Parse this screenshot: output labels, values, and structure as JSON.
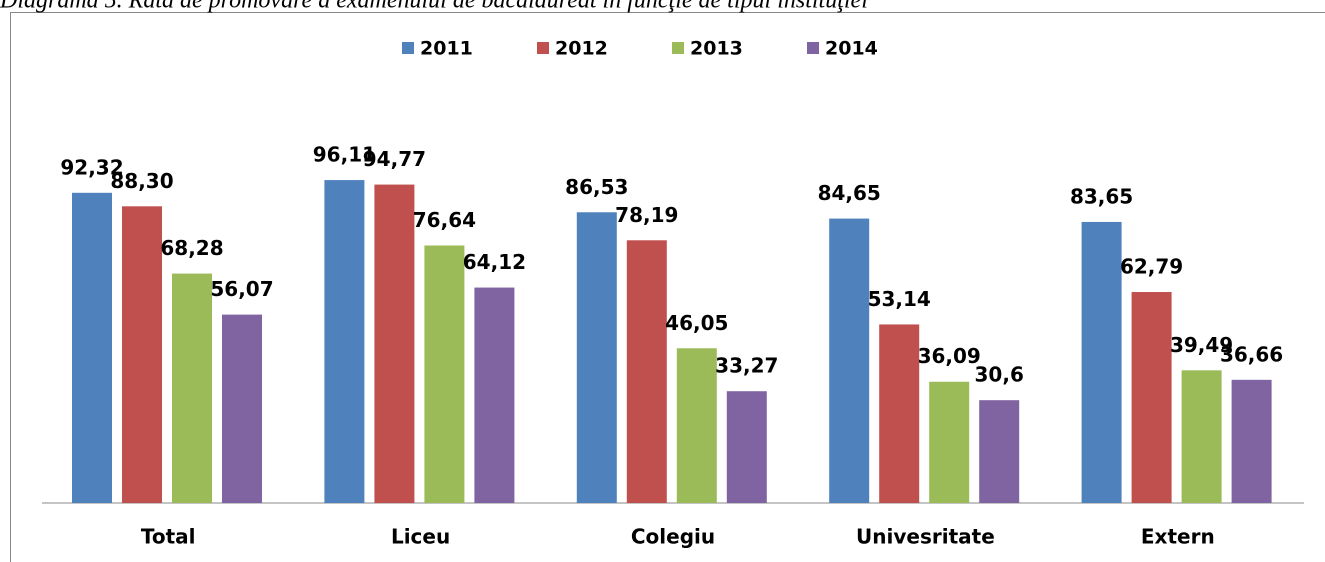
{
  "chart_data": {
    "type": "bar",
    "title": "Diagrama 5. Rata de promovare a examenului de bacalaureat în funcţie de tipul instituţiei",
    "categories": [
      "Total",
      "Liceu",
      "Colegiu",
      "Univesritate",
      "Extern"
    ],
    "series": [
      {
        "name": "2011",
        "color": "#4f81bd",
        "values": [
          92.32,
          96.11,
          86.53,
          84.65,
          83.65
        ],
        "value_labels": [
          "92,32",
          "96,11",
          "86,53",
          "84,65",
          "83,65"
        ]
      },
      {
        "name": "2012",
        "color": "#c0504d",
        "values": [
          88.3,
          94.77,
          78.19,
          53.14,
          62.79
        ],
        "value_labels": [
          "88,30",
          "94,77",
          "78,19",
          "53,14",
          "62,79"
        ]
      },
      {
        "name": "2013",
        "color": "#9bbb59",
        "values": [
          68.28,
          76.64,
          46.05,
          36.09,
          39.49
        ],
        "value_labels": [
          "68,28",
          "76,64",
          "46,05",
          "36,09",
          "39,49"
        ]
      },
      {
        "name": "2014",
        "color": "#8064a2",
        "values": [
          56.07,
          64.12,
          33.27,
          30.6,
          36.66
        ],
        "value_labels": [
          "56,07",
          "64,12",
          "33,27",
          "30,6",
          "36,66"
        ]
      }
    ],
    "ylim": [
      0,
      100
    ],
    "legend": "top"
  }
}
